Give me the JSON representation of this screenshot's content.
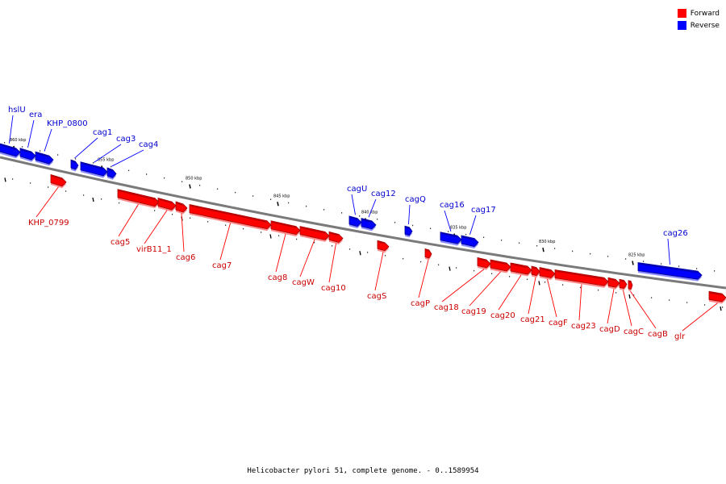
{
  "legend": {
    "forward": {
      "label": "Forward",
      "color": "#ff0000"
    },
    "reverse": {
      "label": "Reverse",
      "color": "#0000ff"
    }
  },
  "caption": "Helicobacter pylori 51, complete genome. - 0..1589954",
  "scale_ticks": [
    "860 kbp",
    "855 kbp",
    "850 kbp",
    "845 kbp",
    "840 kbp",
    "835 kbp",
    "830 kbp",
    "825 kbp"
  ],
  "genes": [
    {
      "name": "hslU",
      "strand": "reverse"
    },
    {
      "name": "era",
      "strand": "reverse"
    },
    {
      "name": "KHP_0800",
      "strand": "reverse"
    },
    {
      "name": "cag1",
      "strand": "reverse"
    },
    {
      "name": "cag3",
      "strand": "reverse"
    },
    {
      "name": "cag4",
      "strand": "reverse"
    },
    {
      "name": "KHP_0799",
      "strand": "forward"
    },
    {
      "name": "cag5",
      "strand": "forward"
    },
    {
      "name": "virB11_1",
      "strand": "forward"
    },
    {
      "name": "cag6",
      "strand": "forward"
    },
    {
      "name": "cag7",
      "strand": "forward"
    },
    {
      "name": "cag8",
      "strand": "forward"
    },
    {
      "name": "cagW",
      "strand": "forward"
    },
    {
      "name": "cag10",
      "strand": "forward"
    },
    {
      "name": "cagU",
      "strand": "reverse"
    },
    {
      "name": "cag12",
      "strand": "reverse"
    },
    {
      "name": "cagQ",
      "strand": "reverse"
    },
    {
      "name": "cagS",
      "strand": "forward"
    },
    {
      "name": "cagP",
      "strand": "forward"
    },
    {
      "name": "cag16",
      "strand": "reverse"
    },
    {
      "name": "cag17",
      "strand": "reverse"
    },
    {
      "name": "cag18",
      "strand": "forward"
    },
    {
      "name": "cag19",
      "strand": "forward"
    },
    {
      "name": "cag20",
      "strand": "forward"
    },
    {
      "name": "cag21",
      "strand": "forward"
    },
    {
      "name": "cagF",
      "strand": "forward"
    },
    {
      "name": "cag23",
      "strand": "forward"
    },
    {
      "name": "cagD",
      "strand": "forward"
    },
    {
      "name": "cagC",
      "strand": "forward"
    },
    {
      "name": "cagB",
      "strand": "forward"
    },
    {
      "name": "cag26",
      "strand": "reverse"
    },
    {
      "name": "glr",
      "strand": "forward"
    }
  ]
}
